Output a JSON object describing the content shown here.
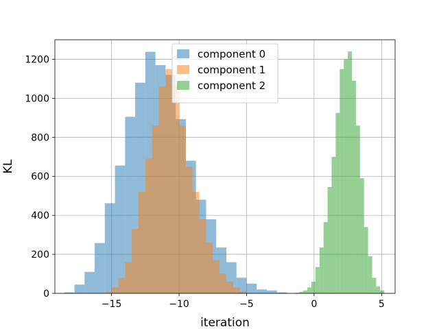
{
  "chart_data": {
    "type": "bar",
    "subtype": "overlapping-histogram",
    "title": "",
    "xlabel": "iteration",
    "ylabel": "KL",
    "xlim": [
      -19.2,
      6.0
    ],
    "ylim": [
      0,
      1300
    ],
    "xticks": [
      -15,
      -10,
      -5,
      0,
      5
    ],
    "xtick_labels": [
      "−15",
      "−10",
      "−5",
      "0",
      "5"
    ],
    "yticks": [
      0,
      200,
      400,
      600,
      800,
      1000,
      1200
    ],
    "ytick_labels": [
      "0",
      "200",
      "400",
      "600",
      "800",
      "1000",
      "1200"
    ],
    "grid": true,
    "legend_position": "upper-center",
    "bar_opacity": 0.5,
    "series": [
      {
        "name": "component 0",
        "color": "#1f77b4",
        "bins": [
          {
            "x0": -18.5,
            "x1": -17.75,
            "y": 5
          },
          {
            "x0": -17.75,
            "x1": -17.0,
            "y": 45
          },
          {
            "x0": -17.0,
            "x1": -16.25,
            "y": 110
          },
          {
            "x0": -16.25,
            "x1": -15.5,
            "y": 258
          },
          {
            "x0": -15.5,
            "x1": -14.75,
            "y": 462
          },
          {
            "x0": -14.75,
            "x1": -14.0,
            "y": 655
          },
          {
            "x0": -14.0,
            "x1": -13.25,
            "y": 905
          },
          {
            "x0": -13.25,
            "x1": -12.5,
            "y": 1080
          },
          {
            "x0": -12.5,
            "x1": -11.75,
            "y": 1238
          },
          {
            "x0": -11.75,
            "x1": -11.0,
            "y": 1170
          },
          {
            "x0": -11.0,
            "x1": -10.25,
            "y": 1120
          },
          {
            "x0": -10.25,
            "x1": -9.5,
            "y": 893
          },
          {
            "x0": -9.5,
            "x1": -8.75,
            "y": 680
          },
          {
            "x0": -8.75,
            "x1": -8.0,
            "y": 480
          },
          {
            "x0": -8.0,
            "x1": -7.25,
            "y": 380
          },
          {
            "x0": -7.25,
            "x1": -6.5,
            "y": 235
          },
          {
            "x0": -6.5,
            "x1": -5.75,
            "y": 160
          },
          {
            "x0": -5.75,
            "x1": -5.0,
            "y": 80
          },
          {
            "x0": -5.0,
            "x1": -4.25,
            "y": 50
          },
          {
            "x0": -4.25,
            "x1": -3.5,
            "y": 20
          },
          {
            "x0": -3.5,
            "x1": -2.75,
            "y": 15
          },
          {
            "x0": -2.75,
            "x1": -2.0,
            "y": 5
          }
        ]
      },
      {
        "name": "component 1",
        "color": "#ff7f0e",
        "bins": [
          {
            "x0": -15.5,
            "x1": -15.0,
            "y": 8
          },
          {
            "x0": -15.0,
            "x1": -14.5,
            "y": 30
          },
          {
            "x0": -14.5,
            "x1": -14.0,
            "y": 80
          },
          {
            "x0": -14.0,
            "x1": -13.5,
            "y": 160
          },
          {
            "x0": -13.5,
            "x1": -13.0,
            "y": 330
          },
          {
            "x0": -13.0,
            "x1": -12.5,
            "y": 520
          },
          {
            "x0": -12.5,
            "x1": -12.0,
            "y": 690
          },
          {
            "x0": -12.0,
            "x1": -11.5,
            "y": 860
          },
          {
            "x0": -11.5,
            "x1": -11.0,
            "y": 1060
          },
          {
            "x0": -11.0,
            "x1": -10.5,
            "y": 1150
          },
          {
            "x0": -10.5,
            "x1": -10.0,
            "y": 1070
          },
          {
            "x0": -10.0,
            "x1": -9.5,
            "y": 860
          },
          {
            "x0": -9.5,
            "x1": -9.0,
            "y": 650
          },
          {
            "x0": -9.0,
            "x1": -8.5,
            "y": 520
          },
          {
            "x0": -8.5,
            "x1": -8.0,
            "y": 380
          },
          {
            "x0": -8.0,
            "x1": -7.5,
            "y": 260
          },
          {
            "x0": -7.5,
            "x1": -7.0,
            "y": 170
          },
          {
            "x0": -7.0,
            "x1": -6.5,
            "y": 100
          },
          {
            "x0": -6.5,
            "x1": -6.0,
            "y": 60
          },
          {
            "x0": -6.0,
            "x1": -5.5,
            "y": 30
          },
          {
            "x0": -5.5,
            "x1": -5.0,
            "y": 10
          }
        ]
      },
      {
        "name": "component 2",
        "color": "#2ca02c",
        "bins": [
          {
            "x0": -1.4,
            "x1": -1.1,
            "y": 3
          },
          {
            "x0": -1.1,
            "x1": -0.8,
            "y": 8
          },
          {
            "x0": -0.8,
            "x1": -0.5,
            "y": 15
          },
          {
            "x0": -0.5,
            "x1": -0.2,
            "y": 30
          },
          {
            "x0": -0.2,
            "x1": 0.1,
            "y": 60
          },
          {
            "x0": 0.1,
            "x1": 0.4,
            "y": 135
          },
          {
            "x0": 0.4,
            "x1": 0.7,
            "y": 235
          },
          {
            "x0": 0.7,
            "x1": 1.0,
            "y": 365
          },
          {
            "x0": 1.0,
            "x1": 1.3,
            "y": 545
          },
          {
            "x0": 1.3,
            "x1": 1.6,
            "y": 700
          },
          {
            "x0": 1.6,
            "x1": 1.9,
            "y": 925
          },
          {
            "x0": 1.9,
            "x1": 2.2,
            "y": 1150
          },
          {
            "x0": 2.2,
            "x1": 2.5,
            "y": 1200
          },
          {
            "x0": 2.5,
            "x1": 2.8,
            "y": 1240
          },
          {
            "x0": 2.8,
            "x1": 3.1,
            "y": 1090
          },
          {
            "x0": 3.1,
            "x1": 3.4,
            "y": 860
          },
          {
            "x0": 3.4,
            "x1": 3.7,
            "y": 590
          },
          {
            "x0": 3.7,
            "x1": 4.0,
            "y": 340
          },
          {
            "x0": 4.0,
            "x1": 4.3,
            "y": 190
          },
          {
            "x0": 4.3,
            "x1": 4.6,
            "y": 80
          },
          {
            "x0": 4.6,
            "x1": 4.9,
            "y": 35
          },
          {
            "x0": 4.9,
            "x1": 5.2,
            "y": 15
          }
        ]
      }
    ]
  }
}
